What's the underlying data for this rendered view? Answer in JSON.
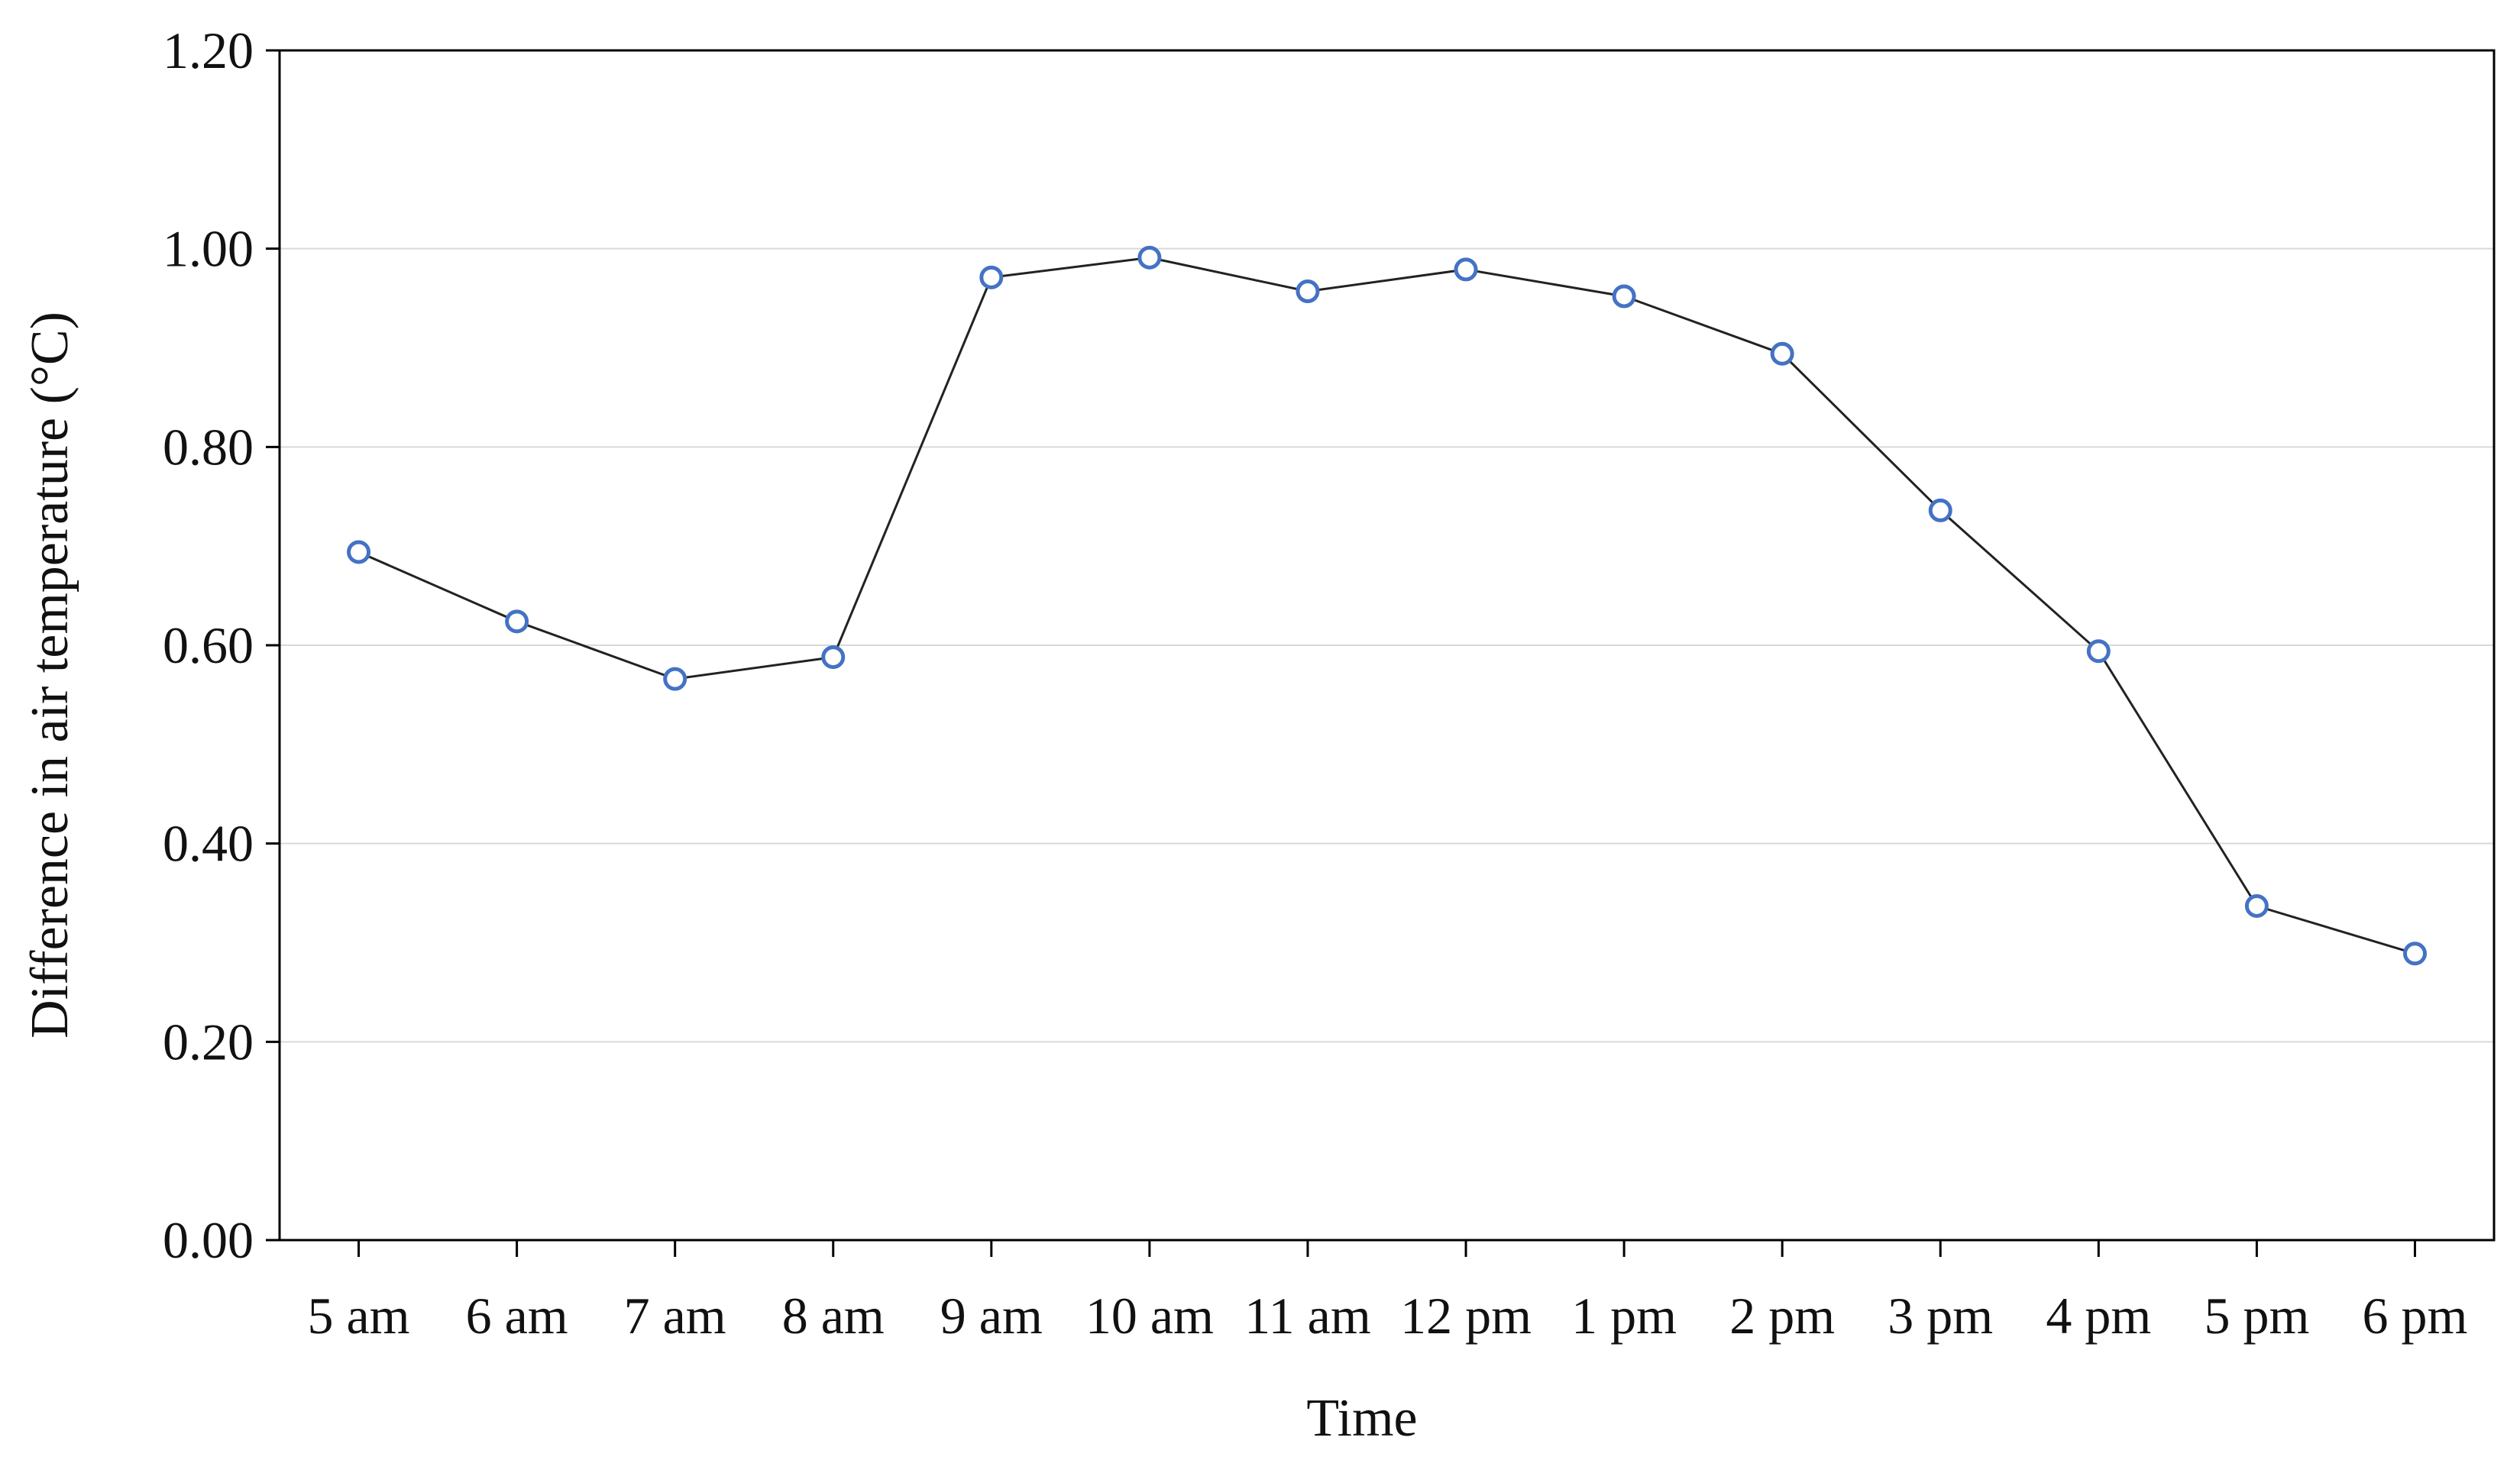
{
  "chart_data": {
    "type": "line",
    "title": "",
    "xlabel": "Time",
    "ylabel": "Difference in air temperature (°C)",
    "categories": [
      "5 am",
      "6 am",
      "7 am",
      "8 am",
      "9 am",
      "10 am",
      "11 am",
      "12 pm",
      "1 pm",
      "2 pm",
      "3 pm",
      "4 pm",
      "5 pm",
      "6 pm"
    ],
    "series": [
      {
        "values": [
          0.694,
          0.624,
          0.566,
          0.588,
          0.971,
          0.991,
          0.957,
          0.979,
          0.952,
          0.894,
          0.736,
          0.594,
          0.337,
          0.289
        ]
      }
    ],
    "ylim": [
      0,
      1.2
    ],
    "yticks": [
      "0.00",
      "0.20",
      "0.40",
      "0.60",
      "0.80",
      "1.00",
      "1.20"
    ],
    "grid": "horizontal",
    "legend": "none",
    "colors": {
      "line": "#222222",
      "marker": "#4472c4",
      "grid": "#d9d9d9",
      "axis": "#000000"
    }
  }
}
